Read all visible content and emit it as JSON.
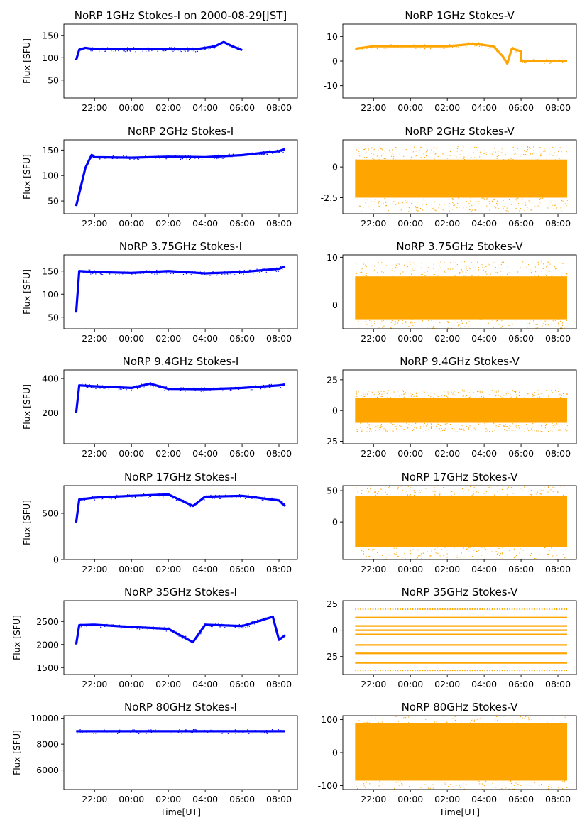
{
  "figure": {
    "x_ticks": [
      "22:00",
      "00:00",
      "02:00",
      "04:00",
      "06:00",
      "08:00"
    ],
    "x_axis_label": "Time[UT]",
    "colors": {
      "stokes_i": "#0000ff",
      "stokes_v": "#ffa500"
    }
  },
  "chart_data": [
    {
      "id": "1GHz-I",
      "type": "scatter",
      "column": "left",
      "title": "NoRP 1GHz Stokes-I on 2000-08-29[JST]",
      "ylabel": "Flux [SFU]",
      "xlabel": "",
      "xlim": [
        "20:20",
        "09:00"
      ],
      "ylim": [
        10,
        175
      ],
      "yticks": [
        50,
        100,
        150
      ],
      "series": [
        {
          "x_range": [
            "21:00",
            "06:00"
          ],
          "values": [
            {
              "x": "21:00",
              "y": 95
            },
            {
              "x": "21:10",
              "y": 118
            },
            {
              "x": "21:30",
              "y": 122
            },
            {
              "x": "22:00",
              "y": 119
            },
            {
              "x": "00:00",
              "y": 119
            },
            {
              "x": "02:00",
              "y": 120
            },
            {
              "x": "03:30",
              "y": 119
            },
            {
              "x": "04:30",
              "y": 125
            },
            {
              "x": "05:00",
              "y": 135
            },
            {
              "x": "05:30",
              "y": 125
            },
            {
              "x": "06:00",
              "y": 117
            }
          ]
        }
      ]
    },
    {
      "id": "1GHz-V",
      "type": "scatter",
      "column": "right",
      "title": "NoRP 1GHz Stokes-V",
      "ylabel": "",
      "xlabel": "",
      "xlim": [
        "20:20",
        "09:00"
      ],
      "ylim": [
        -15,
        15
      ],
      "yticks": [
        -10,
        0,
        10
      ],
      "series": [
        {
          "x_range": [
            "21:00",
            "08:30"
          ],
          "values": [
            {
              "x": "21:00",
              "y": 5
            },
            {
              "x": "22:00",
              "y": 6
            },
            {
              "x": "00:00",
              "y": 6
            },
            {
              "x": "02:00",
              "y": 6
            },
            {
              "x": "03:30",
              "y": 7
            },
            {
              "x": "04:30",
              "y": 6
            },
            {
              "x": "05:00",
              "y": 2
            },
            {
              "x": "05:15",
              "y": -1
            },
            {
              "x": "05:30",
              "y": 5
            },
            {
              "x": "06:00",
              "y": 4
            },
            {
              "x": "06:00",
              "y": 0
            },
            {
              "x": "08:30",
              "y": 0
            }
          ]
        }
      ]
    },
    {
      "id": "2GHz-I",
      "type": "scatter",
      "column": "left",
      "title": "NoRP 2GHz Stokes-I",
      "ylabel": "Flux [SFU]",
      "xlabel": "",
      "xlim": [
        "20:20",
        "09:00"
      ],
      "ylim": [
        25,
        170
      ],
      "yticks": [
        50,
        100,
        150
      ],
      "series": [
        {
          "x_range": [
            "21:00",
            "08:20"
          ],
          "values": [
            {
              "x": "21:00",
              "y": 40
            },
            {
              "x": "21:30",
              "y": 115
            },
            {
              "x": "21:50",
              "y": 140
            },
            {
              "x": "22:00",
              "y": 136
            },
            {
              "x": "00:00",
              "y": 135
            },
            {
              "x": "02:00",
              "y": 137
            },
            {
              "x": "04:00",
              "y": 136
            },
            {
              "x": "06:00",
              "y": 140
            },
            {
              "x": "08:00",
              "y": 148
            },
            {
              "x": "08:20",
              "y": 152
            }
          ]
        }
      ]
    },
    {
      "id": "2GHz-V",
      "type": "scatter",
      "column": "right",
      "title": "NoRP 2GHz Stokes-V",
      "ylabel": "",
      "xlabel": "",
      "xlim": [
        "20:20",
        "09:00"
      ],
      "ylim": [
        -3.8,
        2.2
      ],
      "yticks": [
        -2.5,
        0.0
      ],
      "series": [
        {
          "x_range": [
            "21:00",
            "08:30"
          ],
          "band": [
            -2.5,
            0.6
          ]
        }
      ]
    },
    {
      "id": "3.75GHz-I",
      "type": "scatter",
      "column": "left",
      "title": "NoRP 3.75GHz Stokes-I",
      "ylabel": "Flux [SFU]",
      "xlabel": "",
      "xlim": [
        "20:20",
        "09:00"
      ],
      "ylim": [
        25,
        185
      ],
      "yticks": [
        50,
        100,
        150
      ],
      "series": [
        {
          "x_range": [
            "21:00",
            "08:20"
          ],
          "values": [
            {
              "x": "21:00",
              "y": 60
            },
            {
              "x": "21:10",
              "y": 150
            },
            {
              "x": "22:00",
              "y": 148
            },
            {
              "x": "00:00",
              "y": 146
            },
            {
              "x": "02:00",
              "y": 150
            },
            {
              "x": "04:00",
              "y": 145
            },
            {
              "x": "06:00",
              "y": 148
            },
            {
              "x": "08:00",
              "y": 155
            },
            {
              "x": "08:20",
              "y": 160
            }
          ]
        }
      ]
    },
    {
      "id": "3.75GHz-V",
      "type": "scatter",
      "column": "right",
      "title": "NoRP 3.75GHz Stokes-V",
      "ylabel": "",
      "xlabel": "",
      "xlim": [
        "20:20",
        "09:00"
      ],
      "ylim": [
        -5,
        10.5
      ],
      "yticks": [
        0,
        10
      ],
      "series": [
        {
          "x_range": [
            "21:00",
            "08:30"
          ],
          "band": [
            -3,
            6
          ]
        }
      ]
    },
    {
      "id": "9.4GHz-I",
      "type": "scatter",
      "column": "left",
      "title": "NoRP 9.4GHz Stokes-I",
      "ylabel": "Flux [SFU]",
      "xlabel": "",
      "xlim": [
        "20:20",
        "09:00"
      ],
      "ylim": [
        20,
        450
      ],
      "yticks": [
        200,
        400
      ],
      "series": [
        {
          "x_range": [
            "21:00",
            "08:20"
          ],
          "values": [
            {
              "x": "21:00",
              "y": 200
            },
            {
              "x": "21:10",
              "y": 360
            },
            {
              "x": "22:00",
              "y": 355
            },
            {
              "x": "00:00",
              "y": 345
            },
            {
              "x": "01:00",
              "y": 370
            },
            {
              "x": "02:00",
              "y": 340
            },
            {
              "x": "04:00",
              "y": 338
            },
            {
              "x": "06:00",
              "y": 345
            },
            {
              "x": "08:00",
              "y": 360
            },
            {
              "x": "08:20",
              "y": 365
            }
          ]
        }
      ]
    },
    {
      "id": "9.4GHz-V",
      "type": "scatter",
      "column": "right",
      "title": "NoRP 9.4GHz Stokes-V",
      "ylabel": "",
      "xlabel": "",
      "xlim": [
        "20:20",
        "09:00"
      ],
      "ylim": [
        -27,
        33
      ],
      "yticks": [
        -25,
        0,
        25
      ],
      "series": [
        {
          "x_range": [
            "21:00",
            "08:30"
          ],
          "band": [
            -10,
            10
          ]
        }
      ]
    },
    {
      "id": "17GHz-I",
      "type": "scatter",
      "column": "left",
      "title": "NoRP 17GHz Stokes-I",
      "ylabel": "Flux [SFU]",
      "xlabel": "",
      "xlim": [
        "20:20",
        "09:00"
      ],
      "ylim": [
        0,
        800
      ],
      "yticks": [
        0,
        500
      ],
      "series": [
        {
          "x_range": [
            "21:00",
            "08:20"
          ],
          "values": [
            {
              "x": "21:00",
              "y": 400
            },
            {
              "x": "21:10",
              "y": 650
            },
            {
              "x": "22:00",
              "y": 670
            },
            {
              "x": "00:00",
              "y": 690
            },
            {
              "x": "02:00",
              "y": 705
            },
            {
              "x": "03:20",
              "y": 580
            },
            {
              "x": "04:00",
              "y": 680
            },
            {
              "x": "06:00",
              "y": 690
            },
            {
              "x": "08:00",
              "y": 640
            },
            {
              "x": "08:20",
              "y": 580
            }
          ]
        }
      ]
    },
    {
      "id": "17GHz-V",
      "type": "scatter",
      "column": "right",
      "title": "NoRP 17GHz Stokes-V",
      "ylabel": "",
      "xlabel": "",
      "xlim": [
        "20:20",
        "09:00"
      ],
      "ylim": [
        -60,
        58
      ],
      "yticks": [
        0,
        50
      ],
      "series": [
        {
          "x_range": [
            "21:00",
            "08:30"
          ],
          "band": [
            -40,
            42
          ]
        }
      ]
    },
    {
      "id": "35GHz-I",
      "type": "scatter",
      "column": "left",
      "title": "NoRP 35GHz Stokes-I",
      "ylabel": "Flux [SFU]",
      "xlabel": "",
      "xlim": [
        "20:20",
        "09:00"
      ],
      "ylim": [
        1350,
        2950
      ],
      "yticks": [
        1500,
        2000,
        2500
      ],
      "series": [
        {
          "x_range": [
            "21:00",
            "08:20"
          ],
          "values": [
            {
              "x": "21:00",
              "y": 2000
            },
            {
              "x": "21:10",
              "y": 2420
            },
            {
              "x": "22:00",
              "y": 2430
            },
            {
              "x": "00:00",
              "y": 2380
            },
            {
              "x": "02:00",
              "y": 2340
            },
            {
              "x": "03:20",
              "y": 2050
            },
            {
              "x": "04:00",
              "y": 2430
            },
            {
              "x": "06:00",
              "y": 2400
            },
            {
              "x": "07:40",
              "y": 2600
            },
            {
              "x": "08:00",
              "y": 2100
            },
            {
              "x": "08:20",
              "y": 2200
            }
          ]
        }
      ]
    },
    {
      "id": "35GHz-V",
      "type": "scatter",
      "column": "right",
      "title": "NoRP 35GHz Stokes-V",
      "ylabel": "",
      "xlabel": "",
      "xlim": [
        "20:20",
        "09:00"
      ],
      "ylim": [
        -42,
        28
      ],
      "yticks": [
        -25,
        0,
        25
      ],
      "series": [
        {
          "x_range": [
            "21:00",
            "08:30"
          ],
          "levels": [
            20,
            12,
            4,
            0,
            -4,
            -14,
            -22,
            -31,
            -38
          ]
        }
      ]
    },
    {
      "id": "80GHz-I",
      "type": "scatter",
      "column": "left",
      "title": "NoRP 80GHz Stokes-I",
      "ylabel": "Flux [SFU]",
      "xlabel": "Time[UT]",
      "xlim": [
        "20:20",
        "09:00"
      ],
      "ylim": [
        4500,
        10200
      ],
      "yticks": [
        6000,
        8000,
        10000
      ],
      "series": [
        {
          "x_range": [
            "21:00",
            "08:20"
          ],
          "values": [
            {
              "x": "21:00",
              "y": 9000
            },
            {
              "x": "08:20",
              "y": 9000
            }
          ]
        }
      ]
    },
    {
      "id": "80GHz-V",
      "type": "scatter",
      "column": "right",
      "title": "NoRP 80GHz Stokes-V",
      "ylabel": "",
      "xlabel": "Time[UT]",
      "xlim": [
        "20:20",
        "09:00"
      ],
      "ylim": [
        -112,
        112
      ],
      "yticks": [
        -100,
        0,
        100
      ],
      "series": [
        {
          "x_range": [
            "21:00",
            "08:30"
          ],
          "band": [
            -85,
            90
          ]
        }
      ]
    }
  ]
}
